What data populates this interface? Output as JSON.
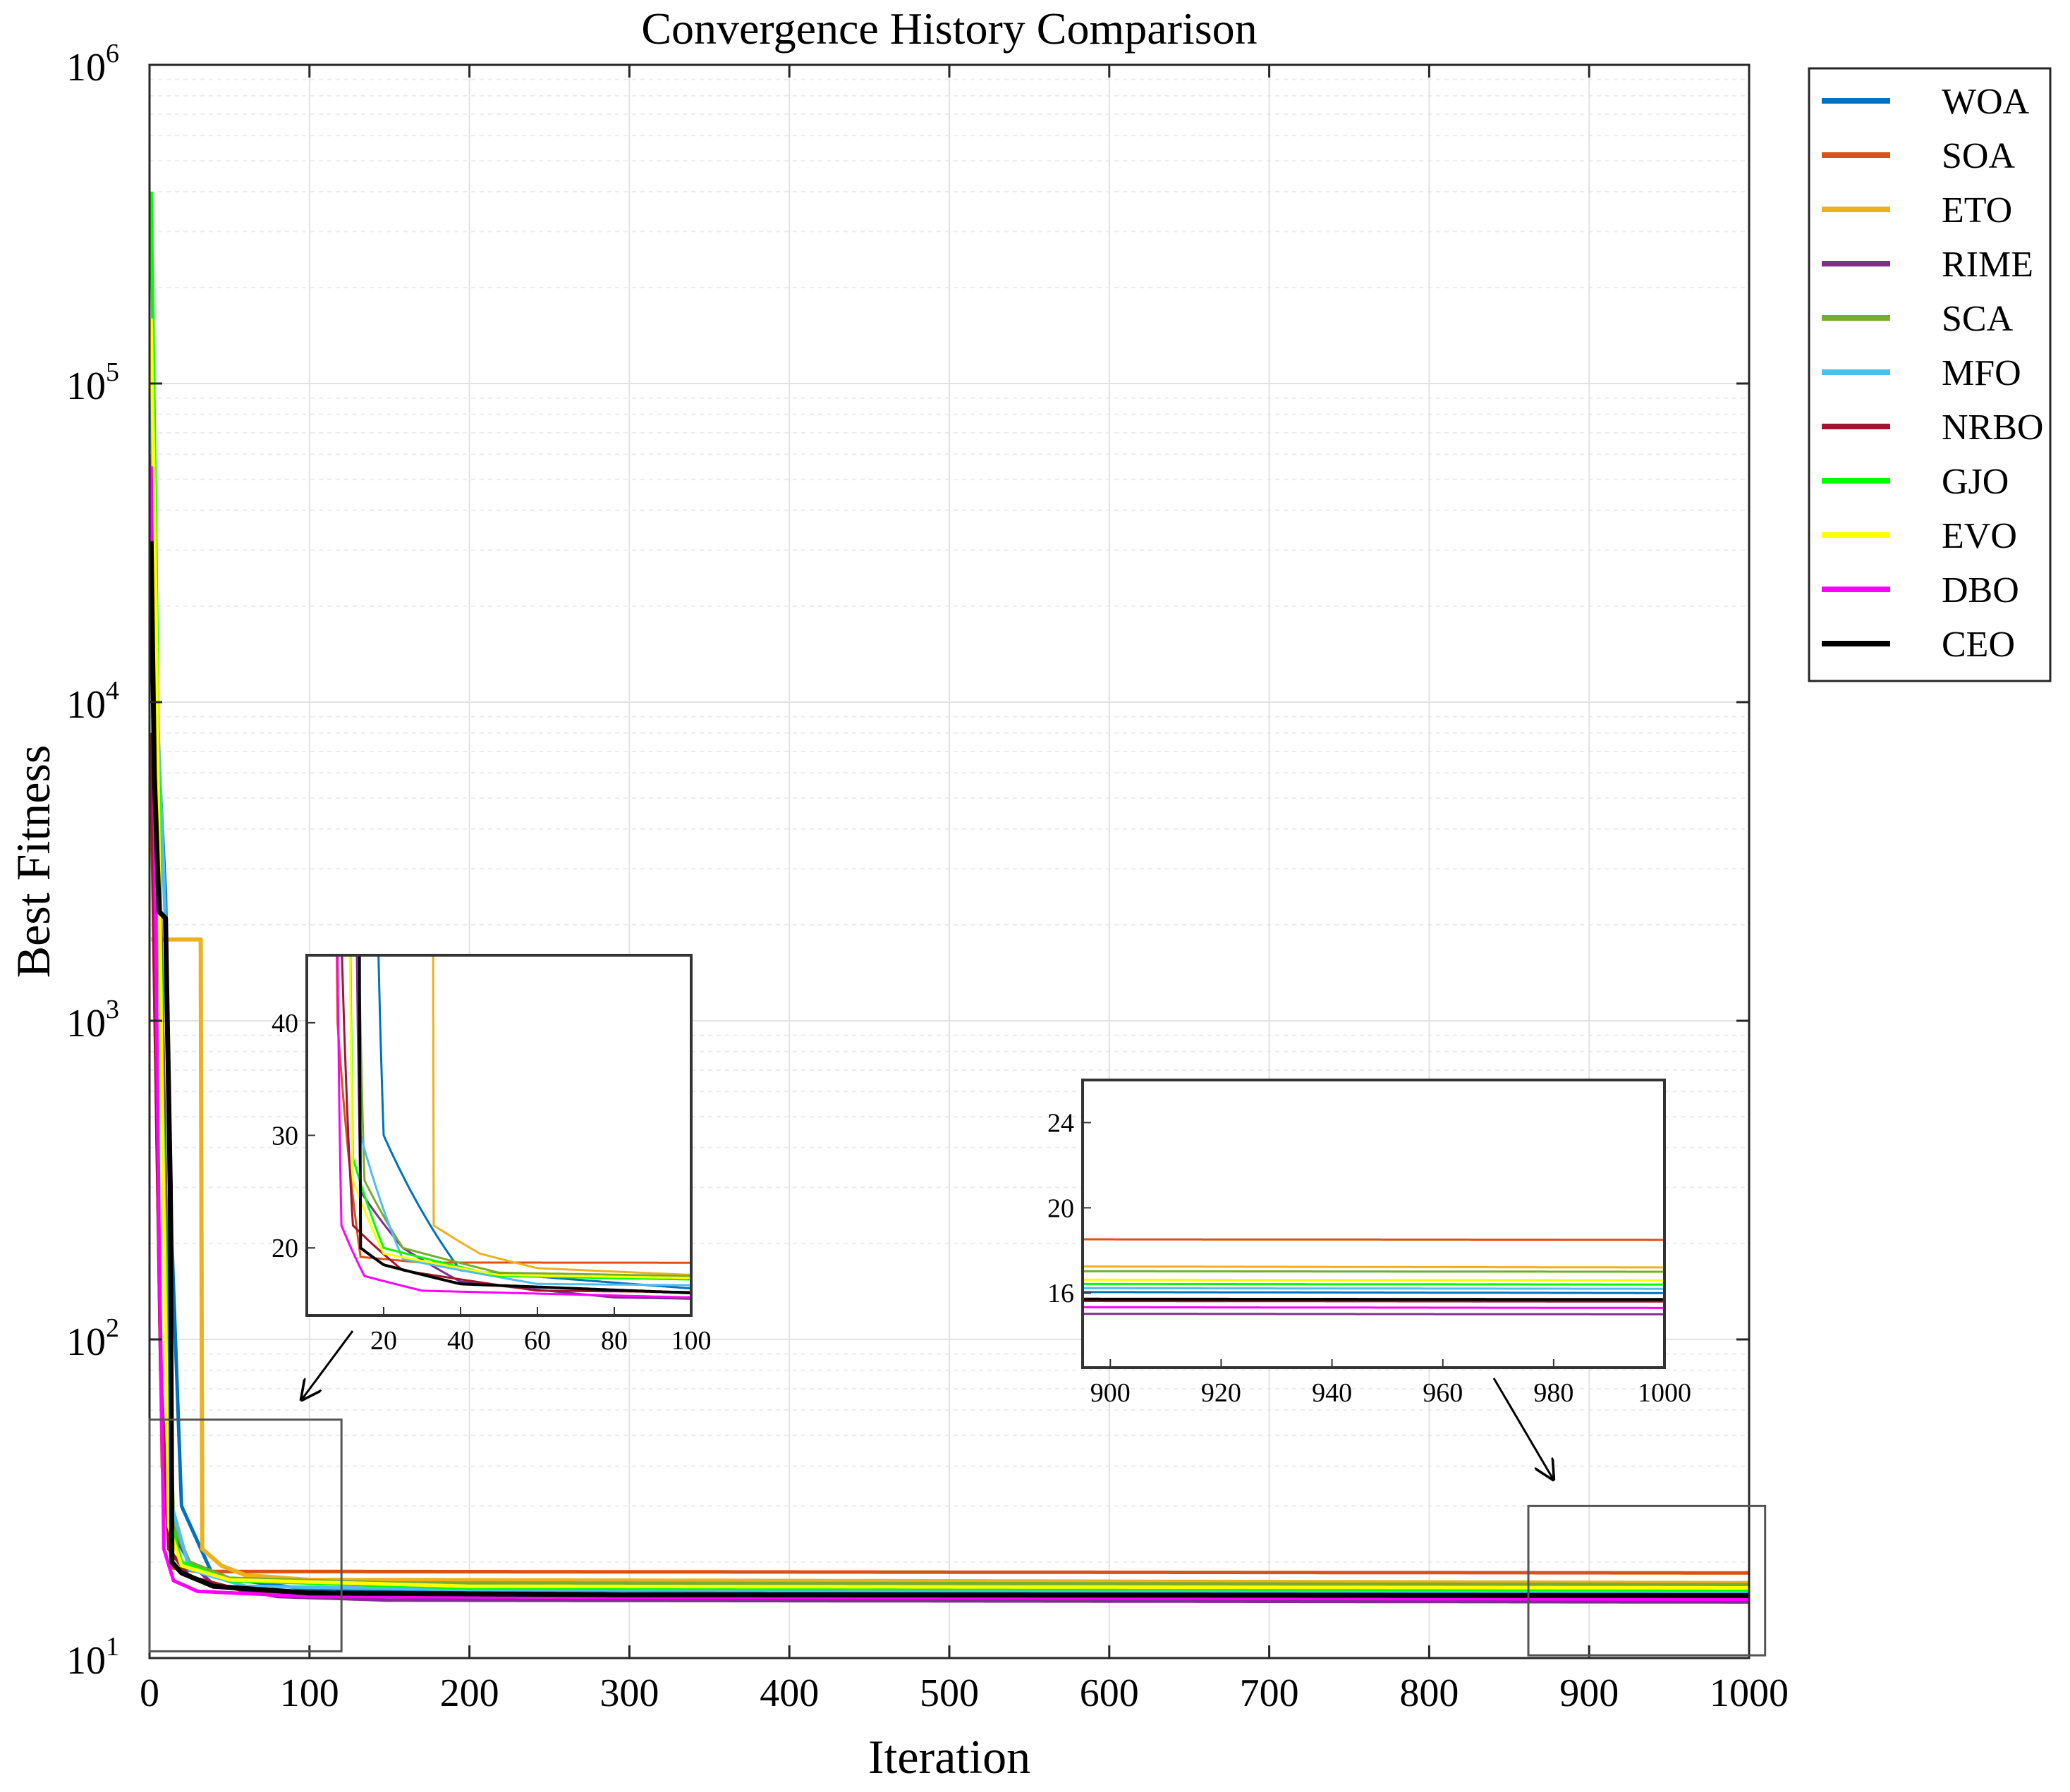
{
  "chart_data": {
    "type": "line",
    "title": "Convergence History Comparison",
    "xlabel": "Iteration",
    "ylabel": "Best Fitness",
    "xlim": [
      0,
      1000
    ],
    "ylim": [
      10,
      1000000
    ],
    "yscale": "log",
    "grid": true,
    "xticks": [
      "0",
      "100",
      "200",
      "300",
      "400",
      "500",
      "600",
      "700",
      "800",
      "900",
      "1000"
    ],
    "yticks": [
      {
        "base": "10",
        "exp": "1"
      },
      {
        "base": "10",
        "exp": "2"
      },
      {
        "base": "10",
        "exp": "3"
      },
      {
        "base": "10",
        "exp": "4"
      },
      {
        "base": "10",
        "exp": "5"
      },
      {
        "base": "10",
        "exp": "6"
      }
    ],
    "legend_position": "outside-top-right",
    "series": [
      {
        "name": "WOA",
        "color": "#0072BD",
        "final": 16.0,
        "points": [
          [
            1,
            20000
          ],
          [
            5,
            8000
          ],
          [
            10,
            2500
          ],
          [
            14,
            200
          ],
          [
            20,
            30
          ],
          [
            40,
            18
          ],
          [
            100,
            16.4
          ],
          [
            1000,
            16.0
          ]
        ]
      },
      {
        "name": "SOA",
        "color": "#D95319",
        "final": 18.5,
        "points": [
          [
            1,
            6000
          ],
          [
            4,
            700
          ],
          [
            8,
            40
          ],
          [
            14,
            19.2
          ],
          [
            30,
            18.7
          ],
          [
            1000,
            18.5
          ]
        ]
      },
      {
        "name": "ETO",
        "color": "#EDB120",
        "final": 17.2,
        "points": [
          [
            1,
            1800
          ],
          [
            10,
            1800
          ],
          [
            32,
            1800
          ],
          [
            33,
            22
          ],
          [
            45,
            19.5
          ],
          [
            60,
            18.2
          ],
          [
            100,
            17.6
          ],
          [
            1000,
            17.2
          ]
        ]
      },
      {
        "name": "RIME",
        "color": "#7E2F8E",
        "final": 15.0,
        "points": [
          [
            1,
            60000
          ],
          [
            6,
            4000
          ],
          [
            10,
            300
          ],
          [
            14,
            25
          ],
          [
            25,
            20
          ],
          [
            40,
            17
          ],
          [
            80,
            15.6
          ],
          [
            150,
            15.2
          ],
          [
            1000,
            15.0
          ]
        ]
      },
      {
        "name": "SCA",
        "color": "#77AC30",
        "final": 17.0,
        "points": [
          [
            1,
            40000
          ],
          [
            5,
            3000
          ],
          [
            10,
            200
          ],
          [
            15,
            26
          ],
          [
            25,
            20
          ],
          [
            50,
            17.8
          ],
          [
            150,
            17.2
          ],
          [
            1000,
            17.0
          ]
        ]
      },
      {
        "name": "MFO",
        "color": "#4DBEEE",
        "final": 16.2,
        "points": [
          [
            1,
            100000
          ],
          [
            5,
            9000
          ],
          [
            11,
            1500
          ],
          [
            14,
            30
          ],
          [
            25,
            19
          ],
          [
            60,
            16.8
          ],
          [
            200,
            16.4
          ],
          [
            1000,
            16.2
          ]
        ]
      },
      {
        "name": "NRBO",
        "color": "#A2142F",
        "final": 15.6,
        "points": [
          [
            1,
            8000
          ],
          [
            3,
            1500
          ],
          [
            7,
            80
          ],
          [
            12,
            22
          ],
          [
            25,
            18
          ],
          [
            60,
            16.2
          ],
          [
            200,
            15.8
          ],
          [
            1000,
            15.6
          ]
        ]
      },
      {
        "name": "GJO",
        "color": "#00FF00",
        "final": 16.4,
        "points": [
          [
            1,
            400000
          ],
          [
            4,
            30000
          ],
          [
            8,
            600
          ],
          [
            12,
            28
          ],
          [
            20,
            20
          ],
          [
            50,
            17.5
          ],
          [
            200,
            16.6
          ],
          [
            1000,
            16.4
          ]
        ]
      },
      {
        "name": "EVO",
        "color": "#FFFF00",
        "final": 16.6,
        "points": [
          [
            1,
            160000
          ],
          [
            4,
            20000
          ],
          [
            8,
            500
          ],
          [
            12,
            26
          ],
          [
            20,
            19.5
          ],
          [
            50,
            17.6
          ],
          [
            200,
            16.8
          ],
          [
            1000,
            16.6
          ]
        ]
      },
      {
        "name": "DBO",
        "color": "#FF00FF",
        "final": 15.3,
        "points": [
          [
            1,
            55000
          ],
          [
            3,
            5000
          ],
          [
            6,
            200
          ],
          [
            9,
            22
          ],
          [
            15,
            17.5
          ],
          [
            30,
            16.2
          ],
          [
            100,
            15.6
          ],
          [
            1000,
            15.3
          ]
        ]
      },
      {
        "name": "CEO",
        "color": "#000000",
        "final": 15.7,
        "points": [
          [
            1,
            32000
          ],
          [
            3,
            6000
          ],
          [
            6,
            2200
          ],
          [
            10,
            2100
          ],
          [
            13,
            300
          ],
          [
            14,
            20
          ],
          [
            20,
            18.5
          ],
          [
            40,
            16.8
          ],
          [
            100,
            16.0
          ],
          [
            300,
            15.8
          ],
          [
            1000,
            15.7
          ]
        ]
      }
    ],
    "insets": [
      {
        "name": "zoom-early",
        "xlim": [
          0,
          100
        ],
        "ylim": [
          14,
          46
        ],
        "xticks": [
          "20",
          "40",
          "60",
          "80",
          "100"
        ],
        "yticks": [
          "20",
          "30",
          "40"
        ],
        "x_tick_values": [
          20,
          40,
          60,
          80,
          100
        ],
        "y_tick_values": [
          20,
          30,
          40
        ],
        "source_xlim": [
          0,
          120
        ],
        "source_ylim": [
          10.5,
          56
        ]
      },
      {
        "name": "zoom-late",
        "xlim": [
          895,
          1000
        ],
        "ylim": [
          12.5,
          26
        ],
        "xticks": [
          "900",
          "920",
          "940",
          "960",
          "980",
          "1000"
        ],
        "yticks": [
          "16",
          "20",
          "24"
        ],
        "x_tick_values": [
          900,
          920,
          940,
          960,
          980,
          1000
        ],
        "y_tick_values": [
          16,
          20,
          24
        ],
        "source_xlim": [
          862,
          1010
        ],
        "source_ylim": [
          10.2,
          30
        ]
      }
    ]
  }
}
